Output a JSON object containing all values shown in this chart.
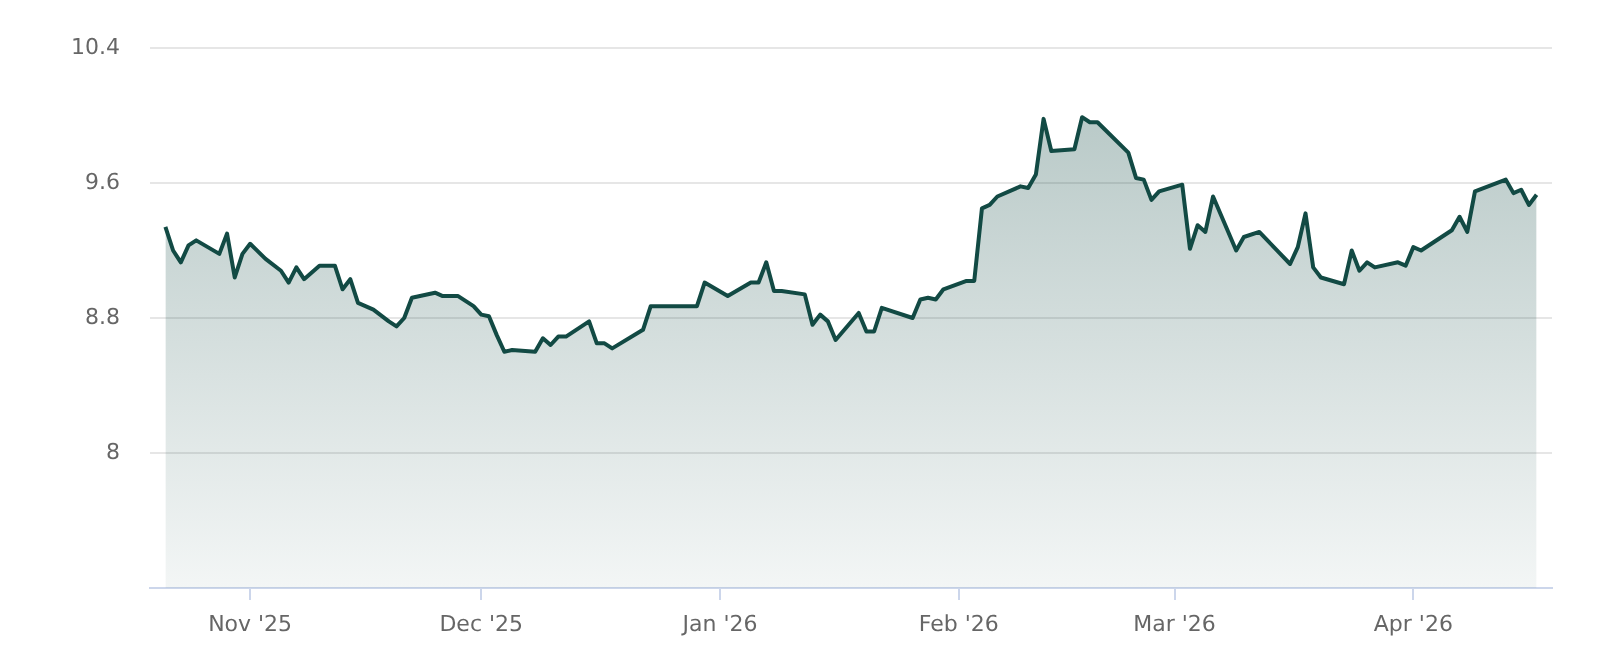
{
  "chart_data": {
    "type": "area",
    "x": [
      "2025-10-21",
      "2025-10-22",
      "2025-10-23",
      "2025-10-24",
      "2025-10-25",
      "2025-10-28",
      "2025-10-29",
      "2025-10-30",
      "2025-10-31",
      "2025-11-01",
      "2025-11-03",
      "2025-11-05",
      "2025-11-06",
      "2025-11-07",
      "2025-11-08",
      "2025-11-10",
      "2025-11-12",
      "2025-11-13",
      "2025-11-14",
      "2025-11-15",
      "2025-11-17",
      "2025-11-19",
      "2025-11-20",
      "2025-11-21",
      "2025-11-22",
      "2025-11-25",
      "2025-11-26",
      "2025-11-28",
      "2025-11-30",
      "2025-12-01",
      "2025-12-02",
      "2025-12-03",
      "2025-12-04",
      "2025-12-05",
      "2025-12-08",
      "2025-12-09",
      "2025-12-10",
      "2025-12-11",
      "2025-12-12",
      "2025-12-15",
      "2025-12-16",
      "2025-12-17",
      "2025-12-18",
      "2025-12-22",
      "2025-12-23",
      "2025-12-29",
      "2025-12-30",
      "2026-01-02",
      "2026-01-05",
      "2026-01-06",
      "2026-01-07",
      "2026-01-08",
      "2026-01-09",
      "2026-01-12",
      "2026-01-13",
      "2026-01-14",
      "2026-01-15",
      "2026-01-16",
      "2026-01-19",
      "2026-01-20",
      "2026-01-21",
      "2026-01-22",
      "2026-01-26",
      "2026-01-27",
      "2026-01-28",
      "2026-01-29",
      "2026-01-30",
      "2026-02-02",
      "2026-02-03",
      "2026-02-04",
      "2026-02-05",
      "2026-02-06",
      "2026-02-09",
      "2026-02-10",
      "2026-02-11",
      "2026-02-12",
      "2026-02-13",
      "2026-02-16",
      "2026-02-17",
      "2026-02-18",
      "2026-02-19",
      "2026-02-23",
      "2026-02-24",
      "2026-02-25",
      "2026-02-26",
      "2026-02-27",
      "2026-03-02",
      "2026-03-03",
      "2026-03-04",
      "2026-03-05",
      "2026-03-06",
      "2026-03-09",
      "2026-03-10",
      "2026-03-12",
      "2026-03-16",
      "2026-03-17",
      "2026-03-18",
      "2026-03-19",
      "2026-03-20",
      "2026-03-23",
      "2026-03-24",
      "2026-03-25",
      "2026-03-26",
      "2026-03-27",
      "2026-03-30",
      "2026-03-31",
      "2026-04-01",
      "2026-04-02",
      "2026-04-06",
      "2026-04-07",
      "2026-04-08",
      "2026-04-09",
      "2026-04-13",
      "2026-04-14",
      "2026-04-15",
      "2026-04-16",
      "2026-04-17"
    ],
    "series": [
      {
        "color": "#124a44",
        "values": [
          9.34,
          9.2,
          9.13,
          9.23,
          9.26,
          9.18,
          9.3,
          9.04,
          9.18,
          9.24,
          9.15,
          9.08,
          9.01,
          9.1,
          9.03,
          9.11,
          9.11,
          8.97,
          9.03,
          8.89,
          8.85,
          8.78,
          8.75,
          8.8,
          8.92,
          8.95,
          8.93,
          8.93,
          8.87,
          8.82,
          8.81,
          8.7,
          8.6,
          8.61,
          8.6,
          8.68,
          8.64,
          8.69,
          8.69,
          8.78,
          8.65,
          8.65,
          8.62,
          8.73,
          8.87,
          8.87,
          9.01,
          8.93,
          9.01,
          9.01,
          9.13,
          8.96,
          8.96,
          8.94,
          8.76,
          8.82,
          8.78,
          8.67,
          8.83,
          8.72,
          8.72,
          8.86,
          8.8,
          8.91,
          8.92,
          8.91,
          8.97,
          9.02,
          9.02,
          9.45,
          9.47,
          9.52,
          9.58,
          9.57,
          9.65,
          9.98,
          9.79,
          9.8,
          9.99,
          9.96,
          9.96,
          9.78,
          9.63,
          9.62,
          9.5,
          9.55,
          9.59,
          9.21,
          9.35,
          9.31,
          9.52,
          9.2,
          9.28,
          9.31,
          9.12,
          9.22,
          9.42,
          9.1,
          9.04,
          9.0,
          9.2,
          9.08,
          9.13,
          9.1,
          9.13,
          9.11,
          9.22,
          9.2,
          9.32,
          9.4,
          9.31,
          9.55,
          9.62,
          9.54,
          9.56,
          9.47,
          9.53
        ]
      }
    ],
    "xlim": [
      "2025-10-19",
      "2026-04-19"
    ],
    "xticks": [
      {
        "value": "2025-11-01",
        "label": "Nov '25"
      },
      {
        "value": "2025-12-01",
        "label": "Dec '25"
      },
      {
        "value": "2026-01-01",
        "label": "Jan '26"
      },
      {
        "value": "2026-02-01",
        "label": "Feb '26"
      },
      {
        "value": "2026-03-01",
        "label": "Mar '26"
      },
      {
        "value": "2026-04-01",
        "label": "Apr '26"
      }
    ],
    "ylim": [
      7.2,
      10.4
    ],
    "yticks": [
      8,
      8.8,
      9.6,
      10.4
    ],
    "grid": "y",
    "marker": "none",
    "line_style": "solid"
  }
}
